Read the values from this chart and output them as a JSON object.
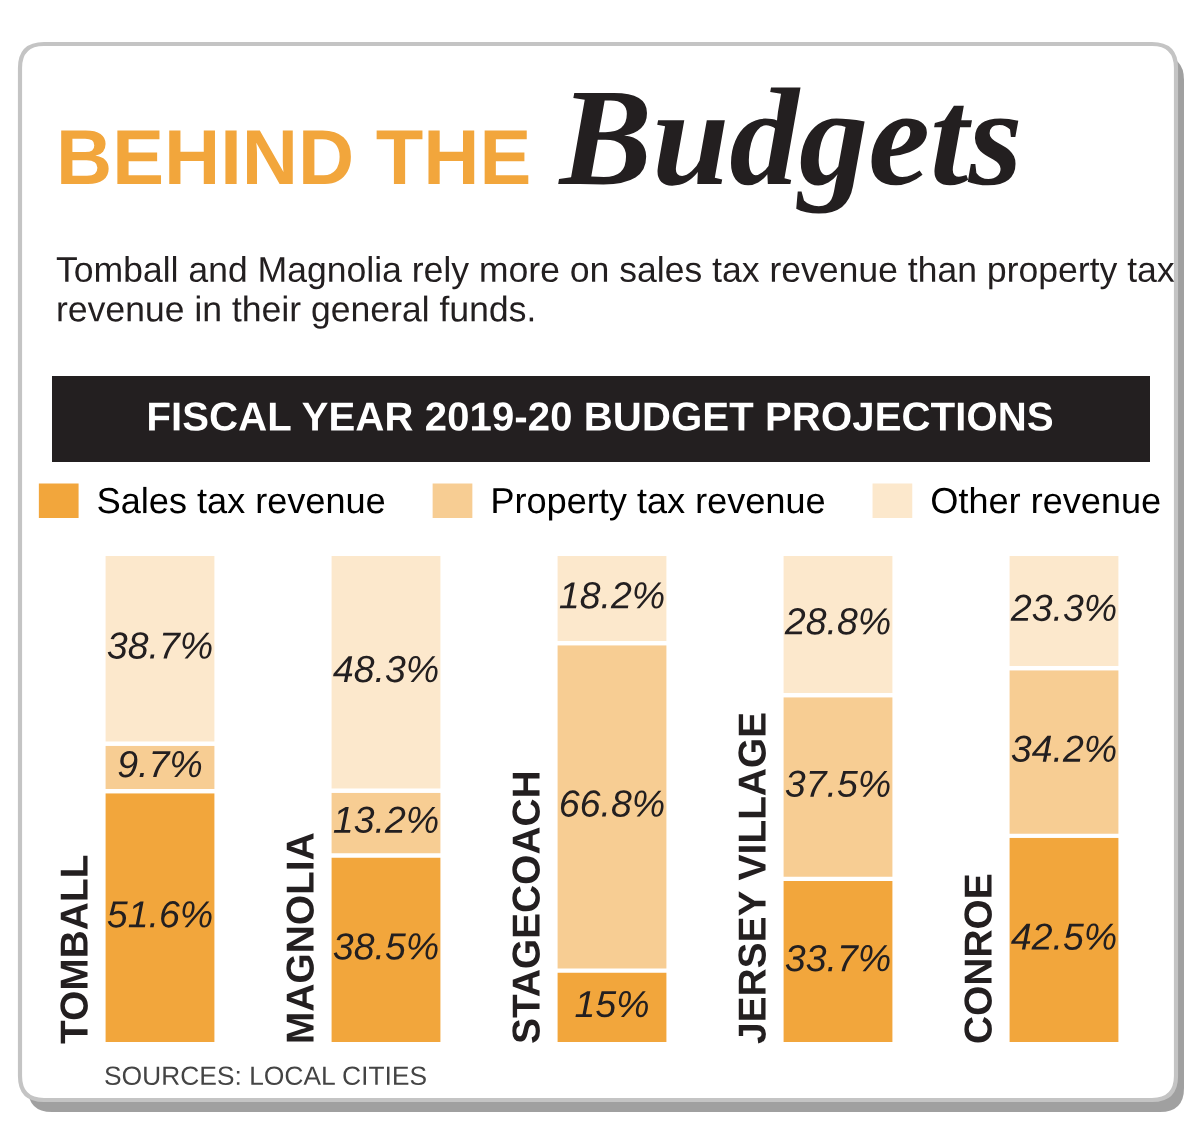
{
  "chart_data": {
    "type": "bar",
    "title": "BEHIND THE Budgets",
    "subtitle": "Tomball and Magnolia rely more on sales tax revenue than property tax revenue in their general funds.",
    "annotations": [
      "FISCAL YEAR 2019-20 BUDGET PROJECTIONS",
      "SOURCES: LOCAL CITIES"
    ],
    "categories": [
      "TOMBALL",
      "MAGNOLIA",
      "STAGECOACH",
      "JERSEY VILLAGE",
      "CONROE"
    ],
    "stacked": true,
    "legend": "top",
    "series": [
      {
        "name": "Sales tax revenue",
        "color": "#f2a63c",
        "values": [
          51.6,
          38.5,
          15,
          33.7,
          42.5
        ],
        "value_labels": [
          "51.6%",
          "38.5%",
          "15%",
          "33.7%",
          "42.5%"
        ]
      },
      {
        "name": "Property tax revenue",
        "color": "#f7cd93",
        "values": [
          9.7,
          13.2,
          66.8,
          37.5,
          34.2
        ],
        "value_labels": [
          "9.7%",
          "13.2%",
          "66.8%",
          "37.5%",
          "34.2%"
        ]
      },
      {
        "name": "Other revenue",
        "color": "#fce8cc",
        "values": [
          38.7,
          48.3,
          18.2,
          28.8,
          23.3
        ],
        "value_labels": [
          "38.7%",
          "48.3%",
          "18.2%",
          "28.8%",
          "23.3%"
        ]
      }
    ]
  }
}
